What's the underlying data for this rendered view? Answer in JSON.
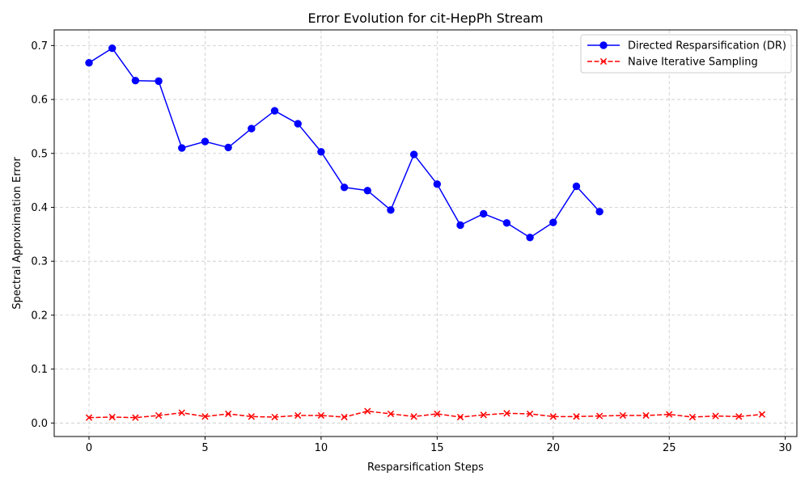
{
  "chart_data": {
    "type": "line",
    "title": "Error Evolution for cit-HepPh Stream",
    "xlabel": "Resparsification Steps",
    "ylabel": "Spectral Approximation Error",
    "xlim": [
      -1.5,
      30.5
    ],
    "ylim": [
      -0.025,
      0.729
    ],
    "xticks": [
      0,
      5,
      10,
      15,
      20,
      25,
      30
    ],
    "yticks": [
      0.0,
      0.1,
      0.2,
      0.3,
      0.4,
      0.5,
      0.6,
      0.7
    ],
    "grid": true,
    "legend_position": "top-right",
    "series": [
      {
        "name": "Directed Resparsification (DR)",
        "color": "#0000ff",
        "line_style": "solid",
        "marker": "circle",
        "x": [
          0,
          1,
          2,
          3,
          4,
          5,
          6,
          7,
          8,
          9,
          10,
          11,
          12,
          13,
          14,
          15,
          16,
          17,
          18,
          19,
          20,
          21,
          22
        ],
        "values": [
          0.668,
          0.695,
          0.635,
          0.634,
          0.51,
          0.522,
          0.511,
          0.546,
          0.579,
          0.555,
          0.503,
          0.437,
          0.431,
          0.395,
          0.498,
          0.443,
          0.367,
          0.388,
          0.371,
          0.344,
          0.372,
          0.439,
          0.392
        ]
      },
      {
        "name": "Naive Iterative Sampling",
        "color": "#ff0000",
        "line_style": "dashed",
        "marker": "x",
        "x": [
          0,
          1,
          2,
          3,
          4,
          5,
          6,
          7,
          8,
          9,
          10,
          11,
          12,
          13,
          14,
          15,
          16,
          17,
          18,
          19,
          20,
          21,
          22,
          23,
          24,
          25,
          26,
          27,
          28,
          29
        ],
        "values": [
          0.01,
          0.011,
          0.01,
          0.014,
          0.019,
          0.012,
          0.017,
          0.012,
          0.011,
          0.014,
          0.014,
          0.011,
          0.022,
          0.017,
          0.012,
          0.017,
          0.011,
          0.015,
          0.018,
          0.017,
          0.012,
          0.012,
          0.013,
          0.014,
          0.014,
          0.016,
          0.011,
          0.013,
          0.012,
          0.016
        ]
      }
    ]
  }
}
